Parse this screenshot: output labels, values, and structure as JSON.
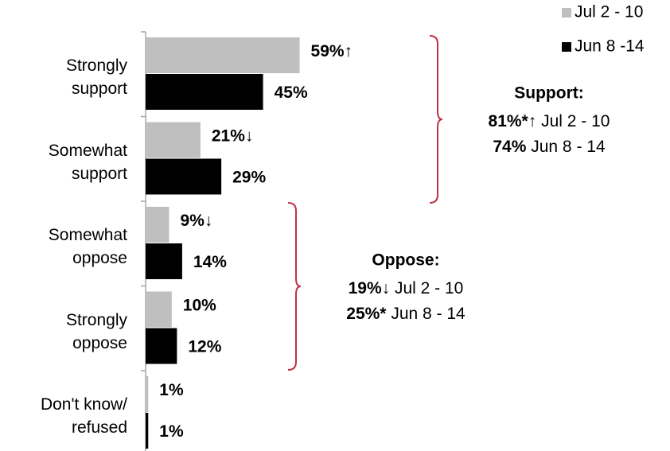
{
  "chart_data": {
    "type": "bar",
    "orientation": "horizontal",
    "categories": [
      "Strongly support",
      "Somewhat support",
      "Somewhat oppose",
      "Strongly oppose",
      "Don't know/ refused"
    ],
    "series": [
      {
        "name": "Jul 2 - 10",
        "color": "#bfbfbf",
        "values": [
          59,
          21,
          9,
          10,
          1
        ],
        "value_labels": [
          "59%↑",
          "21%↓",
          "9%↓",
          "10%",
          "1%"
        ]
      },
      {
        "name": "Jun 8 -14",
        "color": "#000000",
        "values": [
          45,
          29,
          14,
          12,
          1
        ],
        "value_labels": [
          "45%",
          "29%",
          "14%",
          "12%",
          "1%"
        ]
      }
    ],
    "annotations": [
      {
        "title": "Support:",
        "lines": [
          {
            "value": "81%*↑",
            "label": "Jul 2 - 10"
          },
          {
            "value": "74%",
            "label": "Jun 8 - 14"
          }
        ]
      },
      {
        "title": "Oppose:",
        "lines": [
          {
            "value": "19%↓",
            "label": "Jul 2 - 10"
          },
          {
            "value": "25%*",
            "label": "Jun 8 - 14"
          }
        ]
      }
    ]
  }
}
